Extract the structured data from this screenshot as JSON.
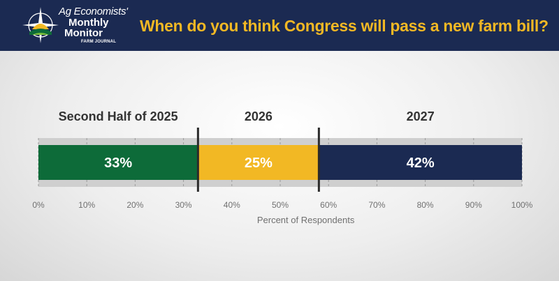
{
  "header": {
    "logo_line1": "Ag Economists'",
    "logo_line2": "Monthly",
    "logo_line3": "Monitor",
    "logo_line4": "FARM JOURNAL",
    "title": "When do you think Congress will pass a new farm bill?"
  },
  "colors": {
    "header_bg": "#1b2a52",
    "title": "#f2b824",
    "green": "#0d6b39",
    "yellow": "#f2b824",
    "navy": "#1b2a52"
  },
  "chart_data": {
    "type": "bar",
    "orientation": "horizontal-stacked",
    "title": "When do you think Congress will pass a new farm bill?",
    "xlabel": "Percent of Respondents",
    "xlim": [
      0,
      100
    ],
    "ticks": [
      "0%",
      "10%",
      "20%",
      "30%",
      "40%",
      "50%",
      "60%",
      "70%",
      "80%",
      "90%",
      "100%"
    ],
    "segments": [
      {
        "name": "Second Half of 2025",
        "value": 33,
        "label": "33%",
        "color": "#0d6b39"
      },
      {
        "name": "2026",
        "value": 25,
        "label": "25%",
        "color": "#f2b824"
      },
      {
        "name": "2027",
        "value": 42,
        "label": "42%",
        "color": "#1b2a52"
      }
    ]
  }
}
